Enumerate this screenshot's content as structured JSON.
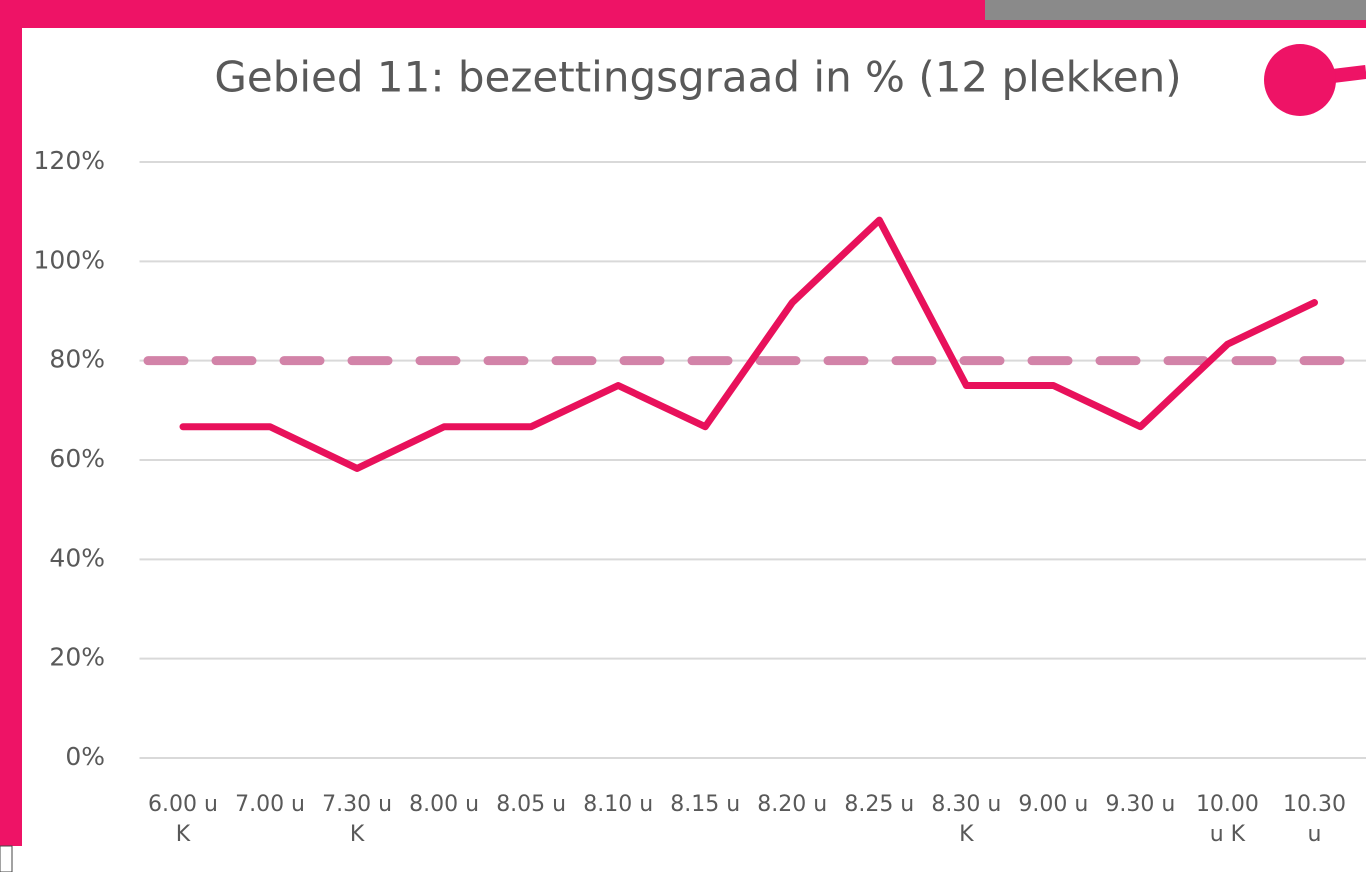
{
  "chart_data": {
    "type": "line",
    "title": "Gebied 11: bezettingsgraad in % (12 plekken)",
    "categories": [
      "6.00 u K",
      "7.00 u",
      "7.30 u K",
      "8.00 u",
      "8.05 u",
      "8.10 u",
      "8.15 u",
      "8.20 u",
      "8.25 u",
      "8.30 u K",
      "9.00 u",
      "9.30 u",
      "10.00 u K",
      "10.30 u"
    ],
    "series": [
      {
        "color": "#e8115b",
        "values": [
          66.7,
          66.7,
          58.3,
          66.7,
          66.7,
          75,
          66.7,
          91.7,
          108.3,
          75,
          75,
          66.7,
          83.3,
          91.7
        ]
      }
    ],
    "threshold": {
      "value": 80,
      "color": "#d283a8"
    },
    "ylim": [
      0,
      120
    ],
    "yticks": [
      {
        "value": 0,
        "label": "0%"
      },
      {
        "value": 20,
        "label": "20%"
      },
      {
        "value": 40,
        "label": "40%"
      },
      {
        "value": 60,
        "label": "60%"
      },
      {
        "value": 80,
        "label": "80%"
      },
      {
        "value": 100,
        "label": "100%"
      },
      {
        "value": 120,
        "label": "120%"
      }
    ],
    "grid": true
  }
}
